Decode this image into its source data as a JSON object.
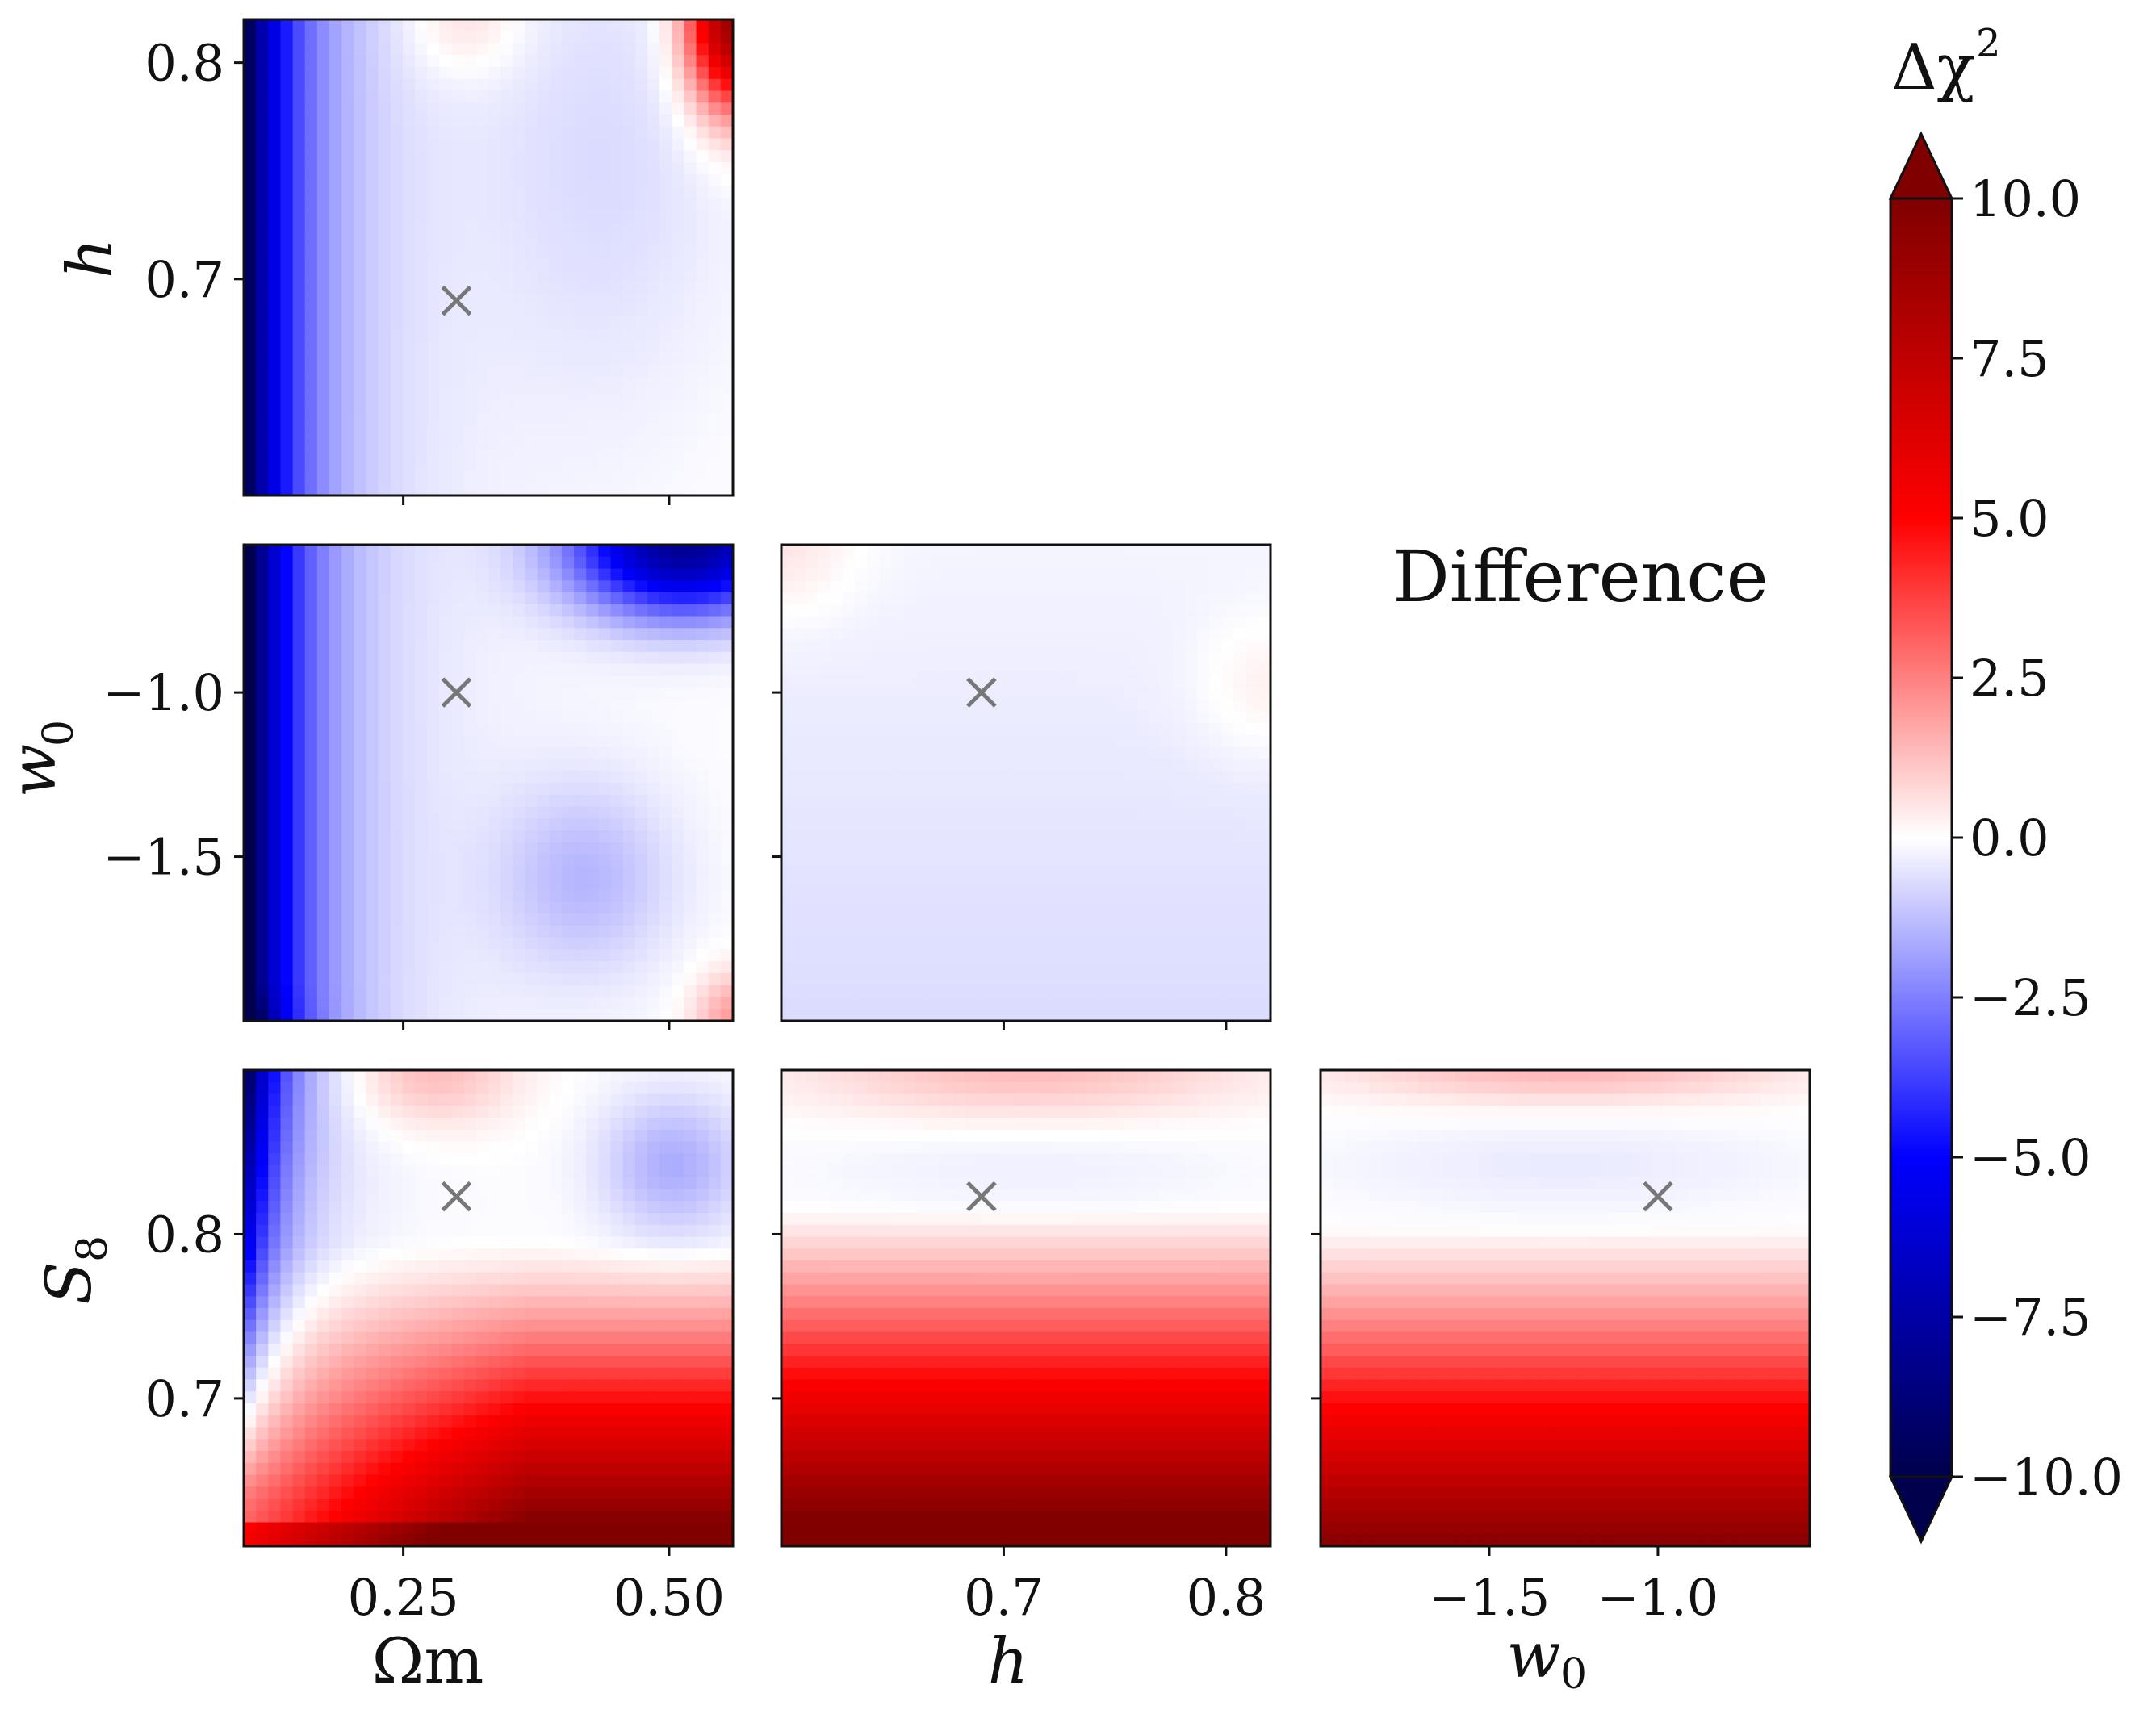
{
  "chart_data": {
    "type": "heatmap",
    "title": "Difference",
    "colorbar": {
      "label": "Δχ²",
      "range": [
        -10.0,
        10.0
      ],
      "ticks": [
        "10.0",
        "7.5",
        "5.0",
        "2.5",
        "0.0",
        "−2.5",
        "−5.0",
        "−7.5",
        "−10.0"
      ],
      "tick_values": [
        10.0,
        7.5,
        5.0,
        2.5,
        0.0,
        -2.5,
        -5.0,
        -7.5,
        -10.0
      ],
      "colormap": "seismic",
      "extend": "both"
    },
    "parameters": {
      "Om": {
        "label": "Ωm",
        "range": [
          0.1,
          0.56
        ],
        "ticks": [
          {
            "v": 0.25,
            "t": "0.25"
          },
          {
            "v": 0.5,
            "t": "0.50"
          }
        ],
        "fiducial": 0.3
      },
      "h": {
        "label": "h",
        "range": [
          0.6,
          0.82
        ],
        "ticks": [
          {
            "v": 0.7,
            "t": "0.7"
          },
          {
            "v": 0.8,
            "t": "0.8"
          }
        ],
        "fiducial": 0.69
      },
      "w0": {
        "label": "w0",
        "range": [
          -2.0,
          -0.55
        ],
        "ticks": [
          {
            "v": -1.5,
            "t": "−1.5"
          },
          {
            "v": -1.0,
            "t": "−1.0"
          }
        ],
        "fiducial": -1.0
      },
      "S8": {
        "label": "S8",
        "range": [
          0.61,
          0.9
        ],
        "ticks": [
          {
            "v": 0.7,
            "t": "0.7"
          },
          {
            "v": 0.8,
            "t": "0.8"
          }
        ],
        "fiducial": 0.823
      }
    },
    "panels": [
      {
        "row": 0,
        "col": 0,
        "x": "Om",
        "y": "h",
        "summary": "strong negative (blue) at low Ωm, near zero elsewhere, positive corner at high Ωm / high h"
      },
      {
        "row": 1,
        "col": 0,
        "x": "Om",
        "y": "w0",
        "summary": "strong negative at low Ωm, negative blob at high Ωm / high w0, slight negative blob around Ωm 0.45 w0 −1.6"
      },
      {
        "row": 1,
        "col": 1,
        "x": "h",
        "y": "w0",
        "summary": "near zero everywhere, slightly negative at low w0"
      },
      {
        "row": 2,
        "col": 0,
        "x": "Om",
        "y": "S8",
        "summary": "blue at low Ωm high S8, strong positive (red) at low S8"
      },
      {
        "row": 2,
        "col": 1,
        "x": "h",
        "y": "S8",
        "summary": "positive increasing toward low S8, mild positive near top"
      },
      {
        "row": 2,
        "col": 2,
        "x": "w0",
        "y": "S8",
        "summary": "positive increasing toward low S8, mild positive near top"
      }
    ],
    "marker": "×"
  },
  "labels": {
    "panel_text": "Difference",
    "x_axis_Om": "Ω",
    "x_axis_Om_sub": "m",
    "x_axis_h": "h",
    "x_axis_w0": "w",
    "x_axis_w0_sub": "0",
    "y_axis_h": "h",
    "y_axis_w0": "w",
    "y_axis_w0_sub": "0",
    "y_axis_S8": "S",
    "y_axis_S8_sub": "8",
    "cb_delta": "Δχ",
    "cb_sup": "2"
  }
}
